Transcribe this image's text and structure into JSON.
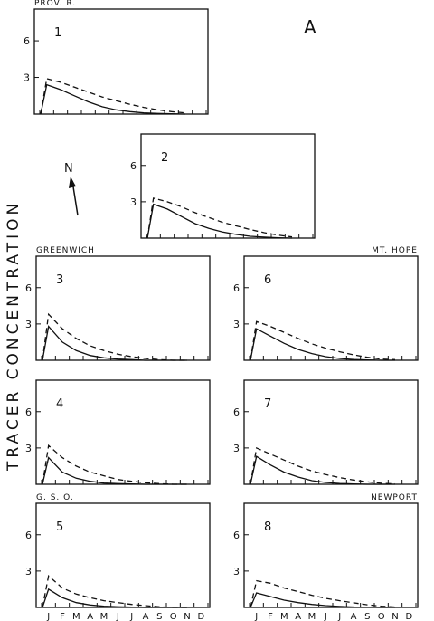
{
  "figure": {
    "label": "A",
    "ylabel": "TRACER CONCENTRATION",
    "north_label": "N"
  },
  "months": [
    "J",
    "F",
    "M",
    "A",
    "M",
    "J",
    "J",
    "A",
    "S",
    "O",
    "N",
    "D"
  ],
  "yticks": [
    "3",
    "6"
  ],
  "chart_data": [
    {
      "type": "line",
      "panel": "1",
      "station": "PROV. R.",
      "ylim": [
        0,
        8.6
      ],
      "yticks": [
        3,
        6
      ],
      "x": [
        "J",
        "F",
        "M",
        "A",
        "M",
        "J",
        "J",
        "A",
        "S",
        "O",
        "N",
        "D"
      ],
      "series": [
        {
          "values": [
            0,
            2.4,
            2.0,
            1.5,
            1.0,
            0.6,
            0.35,
            0.2,
            0.1,
            0.05,
            0.02,
            0.0
          ]
        },
        {
          "values": [
            0,
            2.9,
            2.6,
            2.2,
            1.8,
            1.4,
            1.1,
            0.8,
            0.55,
            0.35,
            0.2,
            0.1
          ]
        }
      ]
    },
    {
      "type": "line",
      "panel": "2",
      "station": "",
      "ylim": [
        0,
        8.6
      ],
      "yticks": [
        3,
        6
      ],
      "x": [
        "J",
        "F",
        "M",
        "A",
        "M",
        "J",
        "J",
        "A",
        "S",
        "O",
        "N",
        "D"
      ],
      "series": [
        {
          "values": [
            0,
            2.8,
            2.4,
            1.8,
            1.2,
            0.8,
            0.5,
            0.3,
            0.15,
            0.08,
            0.03,
            0.0
          ]
        },
        {
          "values": [
            0,
            3.3,
            3.0,
            2.6,
            2.1,
            1.7,
            1.3,
            1.0,
            0.7,
            0.45,
            0.25,
            0.1
          ]
        }
      ]
    },
    {
      "type": "line",
      "panel": "3",
      "station": "GREENWICH",
      "ylim": [
        0,
        8.6
      ],
      "yticks": [
        3,
        6
      ],
      "x": [
        "J",
        "F",
        "M",
        "A",
        "M",
        "J",
        "J",
        "A",
        "S",
        "O",
        "N",
        "D"
      ],
      "series": [
        {
          "values": [
            0,
            2.8,
            1.5,
            0.8,
            0.4,
            0.2,
            0.1,
            0.05,
            0.0,
            0.0,
            0.0,
            0.0
          ]
        },
        {
          "values": [
            0,
            3.8,
            2.6,
            1.8,
            1.2,
            0.8,
            0.5,
            0.3,
            0.15,
            0.05,
            0.0,
            0.0
          ]
        }
      ]
    },
    {
      "type": "line",
      "panel": "4",
      "station": "",
      "ylim": [
        0,
        8.6
      ],
      "yticks": [
        3,
        6
      ],
      "x": [
        "J",
        "F",
        "M",
        "A",
        "M",
        "J",
        "J",
        "A",
        "S",
        "O",
        "N",
        "D"
      ],
      "series": [
        {
          "values": [
            0,
            2.2,
            1.0,
            0.5,
            0.25,
            0.1,
            0.05,
            0.02,
            0.0,
            0.0,
            0.0,
            0.0
          ]
        },
        {
          "values": [
            0,
            3.2,
            2.2,
            1.5,
            1.0,
            0.7,
            0.4,
            0.25,
            0.12,
            0.05,
            0.0,
            0.0
          ]
        }
      ]
    },
    {
      "type": "line",
      "panel": "5",
      "station": "G. S. O.",
      "ylim": [
        0,
        8.6
      ],
      "yticks": [
        3,
        6
      ],
      "x": [
        "J",
        "F",
        "M",
        "A",
        "M",
        "J",
        "J",
        "A",
        "S",
        "O",
        "N",
        "D"
      ],
      "series": [
        {
          "values": [
            0,
            1.5,
            0.8,
            0.4,
            0.2,
            0.1,
            0.05,
            0.02,
            0.0,
            0.0,
            0.0,
            0.0
          ]
        },
        {
          "values": [
            0,
            2.6,
            1.6,
            1.1,
            0.8,
            0.55,
            0.4,
            0.25,
            0.15,
            0.05,
            0.0,
            0.0
          ]
        }
      ]
    },
    {
      "type": "line",
      "panel": "6",
      "station": "MT. HOPE",
      "ylim": [
        0,
        8.6
      ],
      "yticks": [
        3,
        6
      ],
      "x": [
        "J",
        "F",
        "M",
        "A",
        "M",
        "J",
        "J",
        "A",
        "S",
        "O",
        "N",
        "D"
      ],
      "series": [
        {
          "values": [
            0,
            2.6,
            2.0,
            1.4,
            0.9,
            0.55,
            0.3,
            0.15,
            0.07,
            0.03,
            0.0,
            0.0
          ]
        },
        {
          "values": [
            0,
            3.2,
            2.8,
            2.3,
            1.8,
            1.35,
            1.0,
            0.7,
            0.45,
            0.25,
            0.1,
            0.05
          ]
        }
      ]
    },
    {
      "type": "line",
      "panel": "7",
      "station": "",
      "ylim": [
        0,
        8.6
      ],
      "yticks": [
        3,
        6
      ],
      "x": [
        "J",
        "F",
        "M",
        "A",
        "M",
        "J",
        "J",
        "A",
        "S",
        "O",
        "N",
        "D"
      ],
      "series": [
        {
          "values": [
            0,
            2.3,
            1.6,
            1.0,
            0.6,
            0.3,
            0.15,
            0.07,
            0.03,
            0.0,
            0.0,
            0.0
          ]
        },
        {
          "values": [
            0,
            3.0,
            2.5,
            2.0,
            1.5,
            1.1,
            0.8,
            0.55,
            0.35,
            0.2,
            0.08,
            0.03
          ]
        }
      ]
    },
    {
      "type": "line",
      "panel": "8",
      "station": "NEWPORT",
      "ylim": [
        0,
        8.6
      ],
      "yticks": [
        3,
        6
      ],
      "x": [
        "J",
        "F",
        "M",
        "A",
        "M",
        "J",
        "J",
        "A",
        "S",
        "O",
        "N",
        "D"
      ],
      "series": [
        {
          "values": [
            0,
            1.2,
            0.9,
            0.6,
            0.4,
            0.25,
            0.15,
            0.08,
            0.04,
            0.02,
            0.0,
            0.0
          ]
        },
        {
          "values": [
            0,
            2.2,
            2.0,
            1.6,
            1.3,
            1.0,
            0.75,
            0.55,
            0.38,
            0.22,
            0.1,
            0.04
          ]
        }
      ]
    }
  ]
}
